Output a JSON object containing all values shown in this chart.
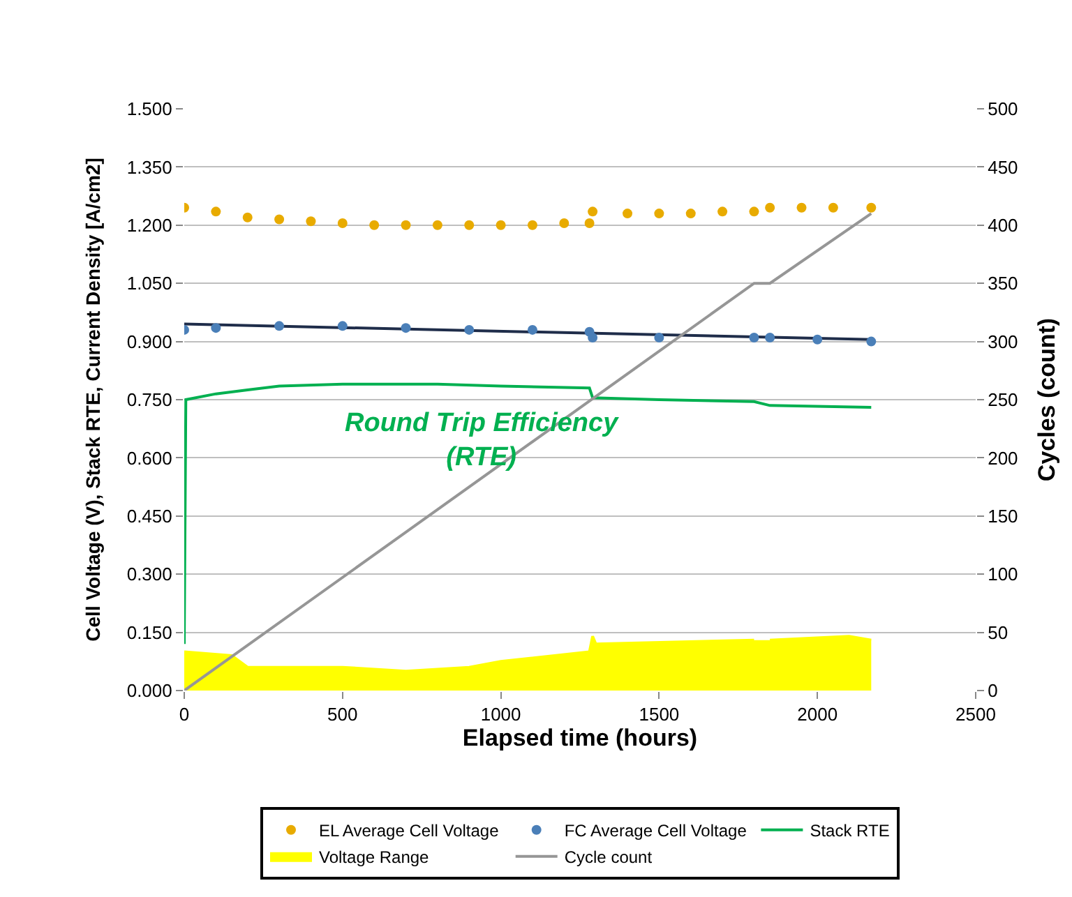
{
  "chart_data": {
    "type": "line",
    "xlabel": "Elapsed time (hours)",
    "ylabel": "Cell Voltage (V), Stack RTE, Current Density [A/cm2]",
    "y2label": "Cycles (count)",
    "xlim": [
      0,
      2500
    ],
    "xticks": [
      0,
      500,
      1000,
      1500,
      2000,
      2500
    ],
    "ylim": [
      0,
      1.5
    ],
    "yticks": [
      {
        "value": 0,
        "label": "0.000"
      },
      {
        "value": 0.15,
        "label": "0.150"
      },
      {
        "value": 0.3,
        "label": "0.300"
      },
      {
        "value": 0.45,
        "label": "0.450"
      },
      {
        "value": 0.6,
        "label": "0.600"
      },
      {
        "value": 0.75,
        "label": "0.750"
      },
      {
        "value": 0.9,
        "label": "0.900"
      },
      {
        "value": 1.05,
        "label": "1.050"
      },
      {
        "value": 1.2,
        "label": "1.200"
      },
      {
        "value": 1.35,
        "label": "1.350"
      },
      {
        "value": 1.5,
        "label": "1.500"
      }
    ],
    "y2lim": [
      0,
      500
    ],
    "y2ticks": [
      0,
      50,
      100,
      150,
      200,
      250,
      300,
      350,
      400,
      450,
      500
    ],
    "grid": "y",
    "legend": "bottom",
    "marker": "none",
    "annotations": [
      "Round Trip Efficiency\n(RTE)"
    ],
    "series": [
      {
        "name": "EL Average Cell Voltage",
        "type": "scatter",
        "marker": "circle",
        "color": "#e8ab00",
        "x": [
          0,
          100,
          200,
          300,
          400,
          500,
          600,
          700,
          800,
          900,
          1000,
          1100,
          1200,
          1280,
          1290,
          1400,
          1500,
          1600,
          1700,
          1800,
          1825,
          1850,
          1950,
          2050,
          2170
        ],
        "values": [
          1.245,
          1.235,
          1.22,
          1.215,
          1.21,
          1.205,
          1.2,
          1.2,
          1.2,
          1.2,
          1.2,
          1.2,
          1.205,
          1.205,
          1.235,
          1.23,
          1.23,
          1.23,
          1.235,
          1.235,
          null,
          1.245,
          1.245,
          1.245,
          1.245
        ]
      },
      {
        "name": "FC Average Cell Voltage",
        "type": "scatter",
        "marker": "circle",
        "color": "#4a7fb8",
        "x": [
          0,
          100,
          300,
          500,
          700,
          900,
          1100,
          1280,
          1290,
          1500,
          1800,
          1825,
          1850,
          2000,
          2170
        ],
        "values": [
          0.93,
          0.935,
          0.94,
          0.94,
          0.935,
          0.93,
          0.93,
          0.925,
          0.91,
          0.91,
          0.91,
          null,
          0.91,
          0.905,
          0.9
        ]
      },
      {
        "name": "Stack RTE",
        "type": "line",
        "color": "#00b050",
        "x": [
          0,
          5,
          100,
          200,
          300,
          500,
          800,
          1000,
          1280,
          1290,
          1500,
          1800,
          1850,
          2170
        ],
        "values": [
          0.12,
          0.75,
          0.765,
          0.775,
          0.785,
          0.79,
          0.79,
          0.785,
          0.78,
          0.755,
          0.75,
          0.745,
          0.735,
          0.73
        ]
      },
      {
        "name": "Voltage Range",
        "type": "area",
        "color": "#ffff00",
        "x": [
          0,
          150,
          200,
          500,
          700,
          900,
          1000,
          1280,
          1290,
          1300,
          1800,
          1825,
          1850,
          2100,
          2170
        ],
        "values": [
          0.1,
          0.09,
          0.06,
          0.06,
          0.05,
          0.06,
          0.075,
          0.1,
          0.14,
          0.12,
          0.13,
          null,
          0.13,
          0.14,
          0.13
        ]
      },
      {
        "name": "Cycle count",
        "type": "line",
        "axis": "y2",
        "color": "#969696",
        "x": [
          0,
          1800,
          1850,
          2170
        ],
        "values": [
          0,
          350,
          350,
          410
        ]
      },
      {
        "color": "#1f2d4a",
        "x": [
          0,
          2170
        ],
        "values": [
          0.945,
          0.905
        ]
      }
    ]
  }
}
